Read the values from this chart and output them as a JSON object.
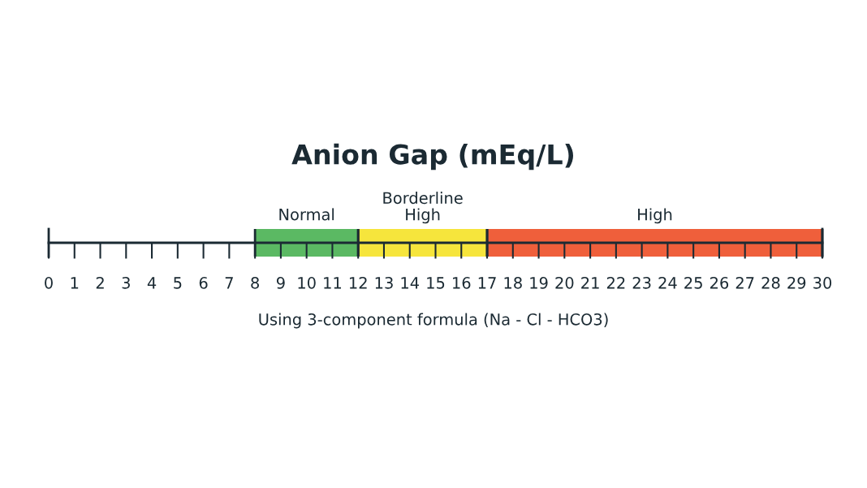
{
  "chart_data": {
    "type": "bar",
    "orientation": "horizontal",
    "title": "Anion Gap (mEq/L)",
    "categories": [
      null
    ],
    "xlim": [
      0,
      30
    ],
    "xticks": [
      0,
      1,
      2,
      3,
      4,
      5,
      6,
      7,
      8,
      9,
      10,
      11,
      12,
      13,
      14,
      15,
      16,
      17,
      18,
      19,
      20,
      21,
      22,
      23,
      24,
      25,
      26,
      27,
      28,
      29,
      30
    ],
    "series": [
      {
        "name": "Normal",
        "color": "#5bb963",
        "base": [
          8
        ],
        "values": [
          4
        ]
      },
      {
        "name": "Borderline\nHigh",
        "color": "#f6e53c",
        "base": [
          12
        ],
        "values": [
          5
        ]
      },
      {
        "name": "High",
        "color": "#ef5f3b",
        "base": [
          17
        ],
        "values": [
          13
        ]
      }
    ],
    "annotations": [
      "Using 3-component formula (Na - Cl - HCO3)"
    ]
  }
}
